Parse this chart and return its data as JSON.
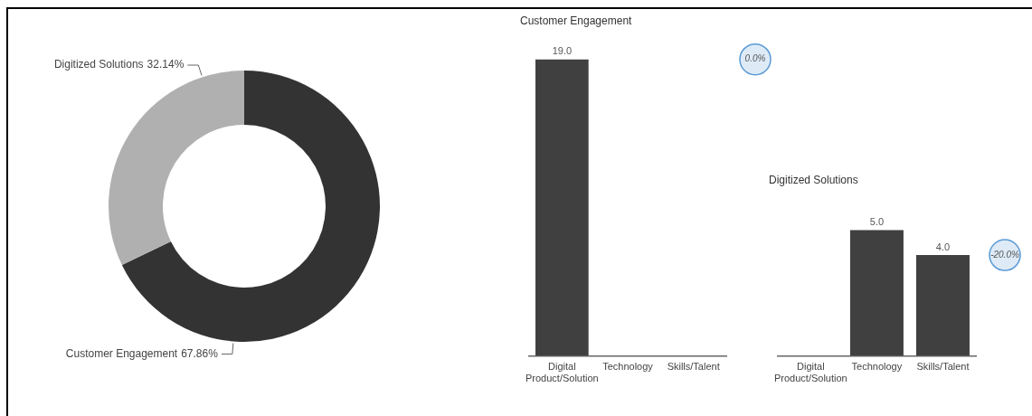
{
  "chart_data": [
    {
      "type": "donut",
      "categories": [
        "Customer Engagement",
        "Digitized Solutions"
      ],
      "values": [
        67.86,
        32.14
      ],
      "colors": [
        "#333333",
        "#b0b0b0"
      ],
      "value_labels": [
        "67.86%",
        "32.14%"
      ],
      "legend": false
    },
    {
      "type": "bar",
      "title": "Customer Engagement",
      "categories": [
        "Digital Product/Solution",
        "Technology",
        "Skills/Talent"
      ],
      "values": [
        19,
        null,
        null
      ],
      "value_labels": [
        "19.0",
        null,
        null
      ],
      "color": "#404040",
      "tick_labels": "x",
      "grid": false,
      "legend": false,
      "annotations": [
        "0.0%"
      ]
    },
    {
      "type": "bar",
      "title": "Digitized Solutions",
      "categories": [
        "Digital Product/Solution",
        "Technology",
        "Skills/Talent"
      ],
      "values": [
        null,
        5,
        4
      ],
      "value_labels": [
        null,
        "5.0",
        "4.0"
      ],
      "color": "#404040",
      "tick_labels": "x",
      "grid": false,
      "legend": false,
      "annotations": [
        "-20.0%"
      ]
    }
  ]
}
